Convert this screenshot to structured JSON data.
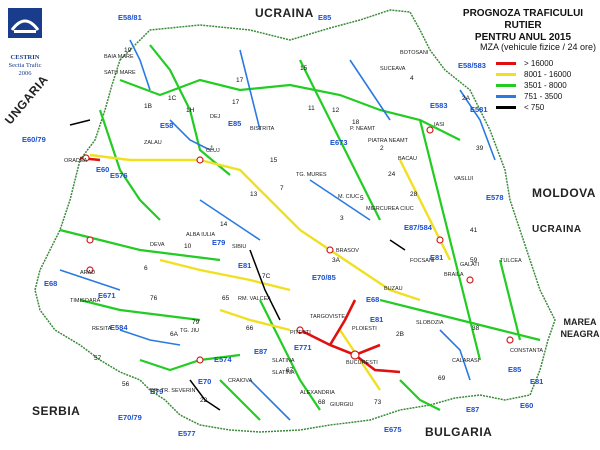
{
  "title_line1": "PROGNOZA TRAFICULUI RUTIER",
  "title_line2": "PENTRU ANUL 2015",
  "subtitle": "MZA (vehicule fizice / 24 ore)",
  "legend": [
    {
      "label": "> 16000",
      "color": "#e01010"
    },
    {
      "label": "8001 - 16000",
      "color": "#f0e020"
    },
    {
      "label": "3501 - 8000",
      "color": "#22cc22"
    },
    {
      "label": "751 - 3500",
      "color": "#2a7ae0"
    },
    {
      "label": "< 750",
      "color": "#000000"
    }
  ],
  "logo": {
    "name": "CESTRIN",
    "line1": "Sectia Trafic",
    "line2": "2006"
  },
  "countries": {
    "ukraina_north": "UCRAINA",
    "ungaria": "UNGARIA",
    "moldova": "MOLDOVA",
    "ukraina_east": "UCRAINA",
    "serbia": "SERBIA",
    "bulgaria": "BULGARIA",
    "sea_line1": "MAREA",
    "sea_line2": "NEAGRA"
  },
  "euro_routes": [
    "E58/81",
    "E85",
    "E58/583",
    "E581",
    "E60/79",
    "E60",
    "E576",
    "E583",
    "E58",
    "E85",
    "E81",
    "E68",
    "E671",
    "E673",
    "E578",
    "E87/584",
    "E81",
    "E584",
    "E70",
    "E79",
    "E70/79",
    "E771",
    "E85",
    "E87",
    "E60",
    "E675",
    "E87",
    "E70/85",
    "E79",
    "E81",
    "E68",
    "E574",
    "E577",
    "E81"
  ],
  "road_numbers": [
    "19",
    "1C",
    "1H",
    "17",
    "15",
    "2",
    "24",
    "28",
    "13",
    "7",
    "1",
    "6",
    "65",
    "66",
    "67",
    "22",
    "3",
    "5",
    "4",
    "2A",
    "39",
    "11",
    "12",
    "17",
    "18",
    "10",
    "14",
    "15",
    "1B",
    "2B",
    "3A",
    "38",
    "41",
    "6A",
    "7C",
    "56",
    "57",
    "59",
    "68",
    "69",
    "73",
    "76",
    "79"
  ],
  "cities": [
    "BAIA MARE",
    "SATU MARE",
    "ORADEA",
    "CLUJ",
    "DEJ",
    "BISTRITA",
    "SUCEAVA",
    "BOTOSANI",
    "IASI",
    "VASLUI",
    "BACAU",
    "P. NEAMT",
    "TG. MURES",
    "M. CIUC",
    "BRASOV",
    "SIBIU",
    "ALBA IULIA",
    "DEVA",
    "ARAD",
    "TIMISOARA",
    "RESITA",
    "TG. JIU",
    "DR. TR. SEVERIN",
    "CRAIOVA",
    "RM. VALCEA",
    "PITESTI",
    "TARGOVISTE",
    "PLOIESTI",
    "BUZAU",
    "FOCSANI",
    "GALATI",
    "BRAILA",
    "TULCEA",
    "CONSTANTA",
    "CALARASI",
    "SLOBOZIA",
    "BUCURESTI",
    "GIURGIU",
    "ALEXANDRIA",
    "SLATINA",
    "ZALAU",
    "SLATINA",
    "MIERCUREA CIUC",
    "PIATRA NEAMT"
  ]
}
